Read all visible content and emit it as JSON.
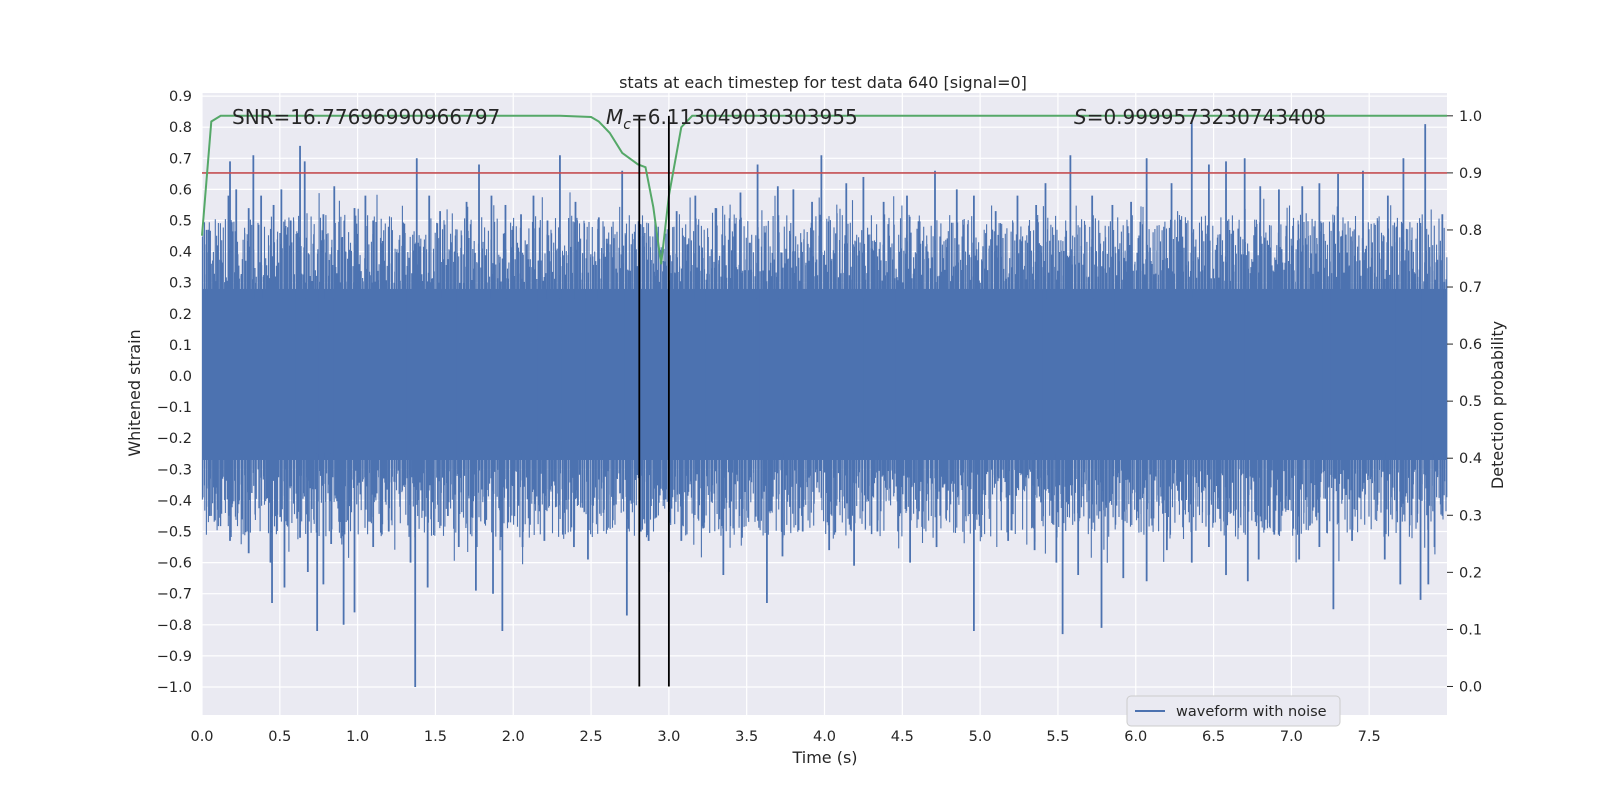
{
  "chart_data": {
    "type": "line",
    "title": "stats at each timestep for test data 640 [signal=0]",
    "xlabel": "Time (s)",
    "ylabel": "Whitened strain",
    "y2label": "Detection probability",
    "xlim": [
      0.0,
      8.0
    ],
    "ylim": [
      -1.09,
      0.91
    ],
    "y2lim": [
      -0.05,
      1.04
    ],
    "xticks": [
      "0.0",
      "0.5",
      "1.0",
      "1.5",
      "2.0",
      "2.5",
      "3.0",
      "3.5",
      "4.0",
      "4.5",
      "5.0",
      "5.5",
      "6.0",
      "6.5",
      "7.0",
      "7.5"
    ],
    "yticks": [
      "0.9",
      "0.8",
      "0.7",
      "0.6",
      "0.5",
      "0.4",
      "0.3",
      "0.2",
      "0.1",
      "0.0",
      "−0.1",
      "−0.2",
      "−0.3",
      "−0.4",
      "−0.5",
      "−0.6",
      "−0.7",
      "−0.8",
      "−0.9",
      "−1.0"
    ],
    "y2ticks": [
      "1.0",
      "0.9",
      "0.8",
      "0.7",
      "0.6",
      "0.5",
      "0.4",
      "0.3",
      "0.2",
      "0.1",
      "0.0"
    ],
    "annotations": {
      "snr": "SNR=16.77696990966797",
      "mc_symbol": "M",
      "mc_sub": "c",
      "mc_value": "=6.113049030303955",
      "s_symbol": "S",
      "s_value": "=0.9999573230743408"
    },
    "legend": {
      "label": "waveform with noise",
      "placement": "lower-center-right"
    },
    "waveform": {
      "name": "waveform with noise",
      "color": "#4c72b0",
      "dense_band": [
        -0.27,
        0.28
      ],
      "max": 0.82,
      "min": -1.0,
      "spikes_up": [
        [
          0.03,
          0.47
        ],
        [
          0.1,
          0.42
        ],
        [
          0.17,
          0.58
        ],
        [
          0.18,
          0.69
        ],
        [
          0.22,
          0.6
        ],
        [
          0.3,
          0.54
        ],
        [
          0.33,
          0.71
        ],
        [
          0.38,
          0.58
        ],
        [
          0.46,
          0.55
        ],
        [
          0.51,
          0.6
        ],
        [
          0.57,
          0.5
        ],
        [
          0.63,
          0.74
        ],
        [
          0.66,
          0.69
        ],
        [
          0.78,
          0.52
        ],
        [
          0.85,
          0.61
        ],
        [
          0.98,
          0.54
        ],
        [
          1.05,
          0.58
        ],
        [
          1.1,
          0.5
        ],
        [
          1.3,
          0.49
        ],
        [
          1.38,
          0.7
        ],
        [
          1.46,
          0.58
        ],
        [
          1.53,
          0.53
        ],
        [
          1.6,
          0.43
        ],
        [
          1.7,
          0.56
        ],
        [
          1.78,
          0.68
        ],
        [
          1.86,
          0.58
        ],
        [
          1.95,
          0.55
        ],
        [
          2.05,
          0.52
        ],
        [
          2.13,
          0.58
        ],
        [
          2.22,
          0.5
        ],
        [
          2.3,
          0.71
        ],
        [
          2.4,
          0.56
        ],
        [
          2.55,
          0.51
        ],
        [
          2.7,
          0.66
        ],
        [
          2.83,
          0.45
        ],
        [
          2.92,
          0.48
        ],
        [
          3.05,
          0.53
        ],
        [
          3.17,
          0.58
        ],
        [
          3.3,
          0.54
        ],
        [
          3.46,
          0.59
        ],
        [
          3.57,
          0.68
        ],
        [
          3.7,
          0.61
        ],
        [
          3.8,
          0.6
        ],
        [
          3.92,
          0.56
        ],
        [
          3.98,
          0.71
        ],
        [
          4.14,
          0.62
        ],
        [
          4.25,
          0.64
        ],
        [
          4.38,
          0.56
        ],
        [
          4.53,
          0.58
        ],
        [
          4.71,
          0.66
        ],
        [
          4.85,
          0.6
        ],
        [
          4.96,
          0.58
        ],
        [
          5.1,
          0.53
        ],
        [
          5.24,
          0.58
        ],
        [
          5.36,
          0.55
        ],
        [
          5.42,
          0.62
        ],
        [
          5.58,
          0.71
        ],
        [
          5.72,
          0.58
        ],
        [
          5.85,
          0.55
        ],
        [
          5.97,
          0.56
        ],
        [
          6.07,
          0.7
        ],
        [
          6.23,
          0.62
        ],
        [
          6.36,
          0.82
        ],
        [
          6.47,
          0.68
        ],
        [
          6.58,
          0.69
        ],
        [
          6.7,
          0.7
        ],
        [
          6.8,
          0.61
        ],
        [
          6.92,
          0.6
        ],
        [
          7.07,
          0.61
        ],
        [
          7.18,
          0.62
        ],
        [
          7.3,
          0.65
        ],
        [
          7.46,
          0.66
        ],
        [
          7.62,
          0.58
        ],
        [
          7.72,
          0.7
        ],
        [
          7.86,
          0.81
        ],
        [
          7.97,
          0.52
        ]
      ],
      "spikes_down": [
        [
          0.05,
          -0.45
        ],
        [
          0.1,
          -0.43
        ],
        [
          0.18,
          -0.53
        ],
        [
          0.3,
          -0.57
        ],
        [
          0.44,
          -0.6
        ],
        [
          0.45,
          -0.73
        ],
        [
          0.53,
          -0.68
        ],
        [
          0.63,
          -0.52
        ],
        [
          0.68,
          -0.63
        ],
        [
          0.74,
          -0.82
        ],
        [
          0.78,
          -0.67
        ],
        [
          0.83,
          -0.54
        ],
        [
          0.91,
          -0.8
        ],
        [
          0.98,
          -0.76
        ],
        [
          1.1,
          -0.55
        ],
        [
          1.2,
          -0.5
        ],
        [
          1.34,
          -0.6
        ],
        [
          1.37,
          -1.0
        ],
        [
          1.45,
          -0.68
        ],
        [
          1.58,
          -0.45
        ],
        [
          1.65,
          -0.55
        ],
        [
          1.76,
          -0.69
        ],
        [
          1.87,
          -0.7
        ],
        [
          1.93,
          -0.82
        ],
        [
          2.06,
          -0.55
        ],
        [
          2.2,
          -0.53
        ],
        [
          2.39,
          -0.55
        ],
        [
          2.48,
          -0.59
        ],
        [
          2.58,
          -0.44
        ],
        [
          2.73,
          -0.77
        ],
        [
          2.82,
          -0.5
        ],
        [
          2.87,
          -0.53
        ],
        [
          3.0,
          -0.63
        ],
        [
          3.08,
          -0.53
        ],
        [
          3.22,
          -0.49
        ],
        [
          3.35,
          -0.64
        ],
        [
          3.47,
          -0.52
        ],
        [
          3.63,
          -0.73
        ],
        [
          3.73,
          -0.58
        ],
        [
          3.86,
          -0.5
        ],
        [
          4.03,
          -0.56
        ],
        [
          4.19,
          -0.61
        ],
        [
          4.34,
          -0.5
        ],
        [
          4.55,
          -0.6
        ],
        [
          4.72,
          -0.55
        ],
        [
          4.96,
          -0.82
        ],
        [
          5.18,
          -0.53
        ],
        [
          5.35,
          -0.56
        ],
        [
          5.49,
          -0.6
        ],
        [
          5.53,
          -0.83
        ],
        [
          5.63,
          -0.64
        ],
        [
          5.78,
          -0.81
        ],
        [
          5.92,
          -0.65
        ],
        [
          6.07,
          -0.66
        ],
        [
          6.2,
          -0.56
        ],
        [
          6.36,
          -0.6
        ],
        [
          6.47,
          -0.55
        ],
        [
          6.58,
          -0.64
        ],
        [
          6.72,
          -0.66
        ],
        [
          6.79,
          -0.59
        ],
        [
          6.89,
          -0.51
        ],
        [
          7.05,
          -0.59
        ],
        [
          7.18,
          -0.55
        ],
        [
          7.27,
          -0.75
        ],
        [
          7.39,
          -0.53
        ],
        [
          7.6,
          -0.59
        ],
        [
          7.7,
          -0.67
        ],
        [
          7.83,
          -0.72
        ],
        [
          7.88,
          -0.67
        ],
        [
          7.92,
          -0.55
        ]
      ]
    },
    "detection_probability": {
      "color": "#55a868",
      "points": [
        [
          0.0,
          0.79
        ],
        [
          0.06,
          0.99
        ],
        [
          0.12,
          1.0
        ],
        [
          0.5,
          1.0
        ],
        [
          1.0,
          1.0
        ],
        [
          1.5,
          1.0
        ],
        [
          2.0,
          1.0
        ],
        [
          2.3,
          1.0
        ],
        [
          2.5,
          0.998
        ],
        [
          2.55,
          0.99
        ],
        [
          2.62,
          0.97
        ],
        [
          2.7,
          0.935
        ],
        [
          2.8,
          0.915
        ],
        [
          2.85,
          0.91
        ],
        [
          2.9,
          0.84
        ],
        [
          2.95,
          0.74
        ],
        [
          3.0,
          0.86
        ],
        [
          3.08,
          0.98
        ],
        [
          3.15,
          1.0
        ],
        [
          3.5,
          1.0
        ],
        [
          4.0,
          1.0
        ],
        [
          4.5,
          1.0
        ],
        [
          5.0,
          1.0
        ],
        [
          5.5,
          1.0
        ],
        [
          6.0,
          1.0
        ],
        [
          6.5,
          1.0
        ],
        [
          7.0,
          1.0
        ],
        [
          7.5,
          1.0
        ],
        [
          8.0,
          1.0
        ]
      ]
    },
    "threshold": {
      "value": 0.9,
      "color": "#c44e52"
    },
    "vlines": [
      {
        "x": 2.81,
        "color": "#000000"
      },
      {
        "x": 3.0,
        "color": "#000000"
      }
    ]
  },
  "colors": {
    "plot_background": "#eaeaf2",
    "grid": "#ffffff",
    "page_background": "#ffffff"
  }
}
